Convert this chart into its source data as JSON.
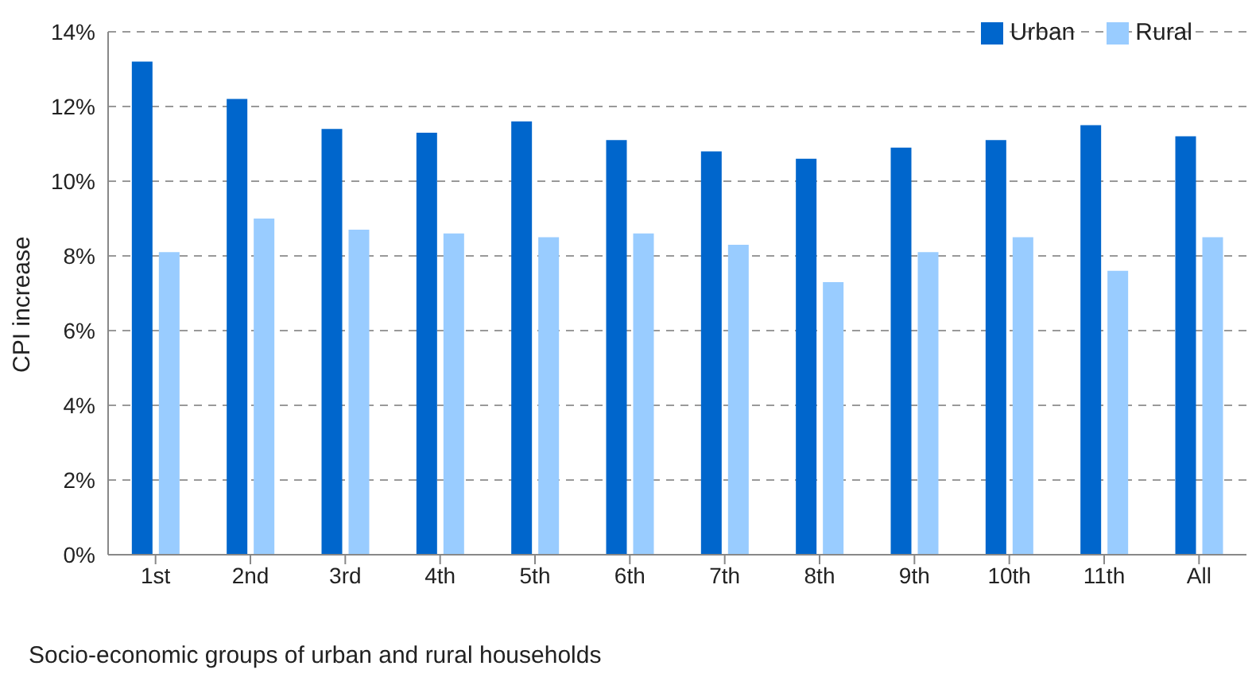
{
  "chart_data": {
    "type": "bar",
    "xlabel": "Socio-economic groups of urban and rural households",
    "ylabel": "CPI  increase",
    "categories": [
      "1st",
      "2nd",
      "3rd",
      "4th",
      "5th",
      "6th",
      "7th",
      "8th",
      "9th",
      "10th",
      "11th",
      "All"
    ],
    "series": [
      {
        "name": "Urban",
        "color": "#0066cc",
        "values": [
          13.2,
          12.2,
          11.4,
          11.3,
          11.6,
          11.1,
          10.8,
          10.6,
          10.9,
          11.1,
          11.5,
          11.2
        ]
      },
      {
        "name": "Rural",
        "color": "#99ccff",
        "values": [
          8.1,
          9.0,
          8.7,
          8.6,
          8.5,
          8.6,
          8.3,
          7.3,
          8.1,
          8.5,
          7.6,
          8.5
        ]
      }
    ],
    "ylim": [
      0,
      14
    ],
    "yticks": [
      {
        "value": 0,
        "label": "0%"
      },
      {
        "value": 2,
        "label": "2%"
      },
      {
        "value": 4,
        "label": "4%"
      },
      {
        "value": 6,
        "label": "6%"
      },
      {
        "value": 8,
        "label": "8%"
      },
      {
        "value": 10,
        "label": "10%"
      },
      {
        "value": 12,
        "label": "12%"
      },
      {
        "value": 14,
        "label": "14%"
      }
    ],
    "grid": "y",
    "legend": "top right"
  }
}
